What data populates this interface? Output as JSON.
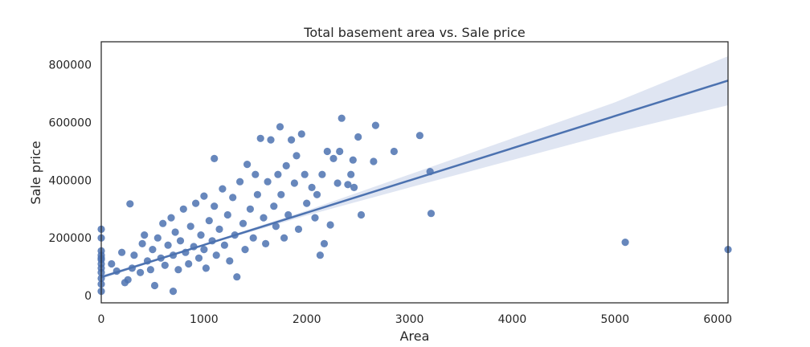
{
  "chart_data": {
    "type": "scatter",
    "title": "Total basement area vs. Sale price",
    "xlabel": "Area",
    "ylabel": "Sale price",
    "xlim": [
      0,
      6100
    ],
    "ylim": [
      -25000,
      880000
    ],
    "xticks": [
      0,
      1000,
      2000,
      3000,
      4000,
      5000,
      6000
    ],
    "yticks": [
      0,
      200000,
      400000,
      600000,
      800000
    ],
    "grid": false,
    "legend": "none",
    "colors": {
      "points": "#4c72b0",
      "regression_line": "#4c72b0",
      "confidence_band": "#c9d4e9"
    },
    "regression": {
      "intercept": 64000,
      "slope": 111.7,
      "ci_band": [
        {
          "x": 0,
          "lo": 58000,
          "hi": 70000
        },
        {
          "x": 1000,
          "lo": 173000,
          "hi": 179000
        },
        {
          "x": 2000,
          "lo": 278000,
          "hi": 295000
        },
        {
          "x": 3000,
          "lo": 375000,
          "hi": 420000
        },
        {
          "x": 4000,
          "lo": 470000,
          "hi": 545000
        },
        {
          "x": 5000,
          "lo": 565000,
          "hi": 670000
        },
        {
          "x": 6100,
          "lo": 660000,
          "hi": 830000
        }
      ]
    },
    "points": [
      {
        "x": 0,
        "y": 230000
      },
      {
        "x": 0,
        "y": 200000
      },
      {
        "x": 0,
        "y": 155000
      },
      {
        "x": 0,
        "y": 140000
      },
      {
        "x": 0,
        "y": 125000
      },
      {
        "x": 0,
        "y": 110000
      },
      {
        "x": 0,
        "y": 95000
      },
      {
        "x": 0,
        "y": 80000
      },
      {
        "x": 0,
        "y": 60000
      },
      {
        "x": 0,
        "y": 40000
      },
      {
        "x": 0,
        "y": 15000
      },
      {
        "x": 0,
        "y": 130000
      },
      {
        "x": 280,
        "y": 318000
      },
      {
        "x": 100,
        "y": 110000
      },
      {
        "x": 150,
        "y": 85000
      },
      {
        "x": 200,
        "y": 150000
      },
      {
        "x": 230,
        "y": 45000
      },
      {
        "x": 260,
        "y": 55000
      },
      {
        "x": 300,
        "y": 95000
      },
      {
        "x": 320,
        "y": 140000
      },
      {
        "x": 380,
        "y": 80000
      },
      {
        "x": 400,
        "y": 180000
      },
      {
        "x": 420,
        "y": 210000
      },
      {
        "x": 450,
        "y": 120000
      },
      {
        "x": 480,
        "y": 90000
      },
      {
        "x": 500,
        "y": 160000
      },
      {
        "x": 520,
        "y": 35000
      },
      {
        "x": 550,
        "y": 200000
      },
      {
        "x": 580,
        "y": 130000
      },
      {
        "x": 600,
        "y": 250000
      },
      {
        "x": 620,
        "y": 105000
      },
      {
        "x": 650,
        "y": 175000
      },
      {
        "x": 680,
        "y": 270000
      },
      {
        "x": 700,
        "y": 140000
      },
      {
        "x": 700,
        "y": 15000
      },
      {
        "x": 720,
        "y": 220000
      },
      {
        "x": 750,
        "y": 90000
      },
      {
        "x": 770,
        "y": 190000
      },
      {
        "x": 800,
        "y": 300000
      },
      {
        "x": 820,
        "y": 150000
      },
      {
        "x": 850,
        "y": 110000
      },
      {
        "x": 870,
        "y": 240000
      },
      {
        "x": 900,
        "y": 170000
      },
      {
        "x": 920,
        "y": 320000
      },
      {
        "x": 950,
        "y": 130000
      },
      {
        "x": 970,
        "y": 210000
      },
      {
        "x": 1000,
        "y": 345000
      },
      {
        "x": 1000,
        "y": 160000
      },
      {
        "x": 1020,
        "y": 95000
      },
      {
        "x": 1050,
        "y": 260000
      },
      {
        "x": 1080,
        "y": 190000
      },
      {
        "x": 1100,
        "y": 310000
      },
      {
        "x": 1120,
        "y": 140000
      },
      {
        "x": 1150,
        "y": 230000
      },
      {
        "x": 1180,
        "y": 370000
      },
      {
        "x": 1100,
        "y": 475000
      },
      {
        "x": 1200,
        "y": 175000
      },
      {
        "x": 1230,
        "y": 280000
      },
      {
        "x": 1250,
        "y": 120000
      },
      {
        "x": 1280,
        "y": 340000
      },
      {
        "x": 1300,
        "y": 210000
      },
      {
        "x": 1320,
        "y": 65000
      },
      {
        "x": 1350,
        "y": 395000
      },
      {
        "x": 1380,
        "y": 250000
      },
      {
        "x": 1400,
        "y": 160000
      },
      {
        "x": 1420,
        "y": 455000
      },
      {
        "x": 1450,
        "y": 300000
      },
      {
        "x": 1480,
        "y": 200000
      },
      {
        "x": 1500,
        "y": 420000
      },
      {
        "x": 1520,
        "y": 350000
      },
      {
        "x": 1550,
        "y": 545000
      },
      {
        "x": 1580,
        "y": 270000
      },
      {
        "x": 1600,
        "y": 180000
      },
      {
        "x": 1620,
        "y": 395000
      },
      {
        "x": 1650,
        "y": 540000
      },
      {
        "x": 1680,
        "y": 310000
      },
      {
        "x": 1700,
        "y": 240000
      },
      {
        "x": 1720,
        "y": 420000
      },
      {
        "x": 1740,
        "y": 585000
      },
      {
        "x": 1750,
        "y": 350000
      },
      {
        "x": 1780,
        "y": 200000
      },
      {
        "x": 1800,
        "y": 450000
      },
      {
        "x": 1820,
        "y": 280000
      },
      {
        "x": 1850,
        "y": 540000
      },
      {
        "x": 1880,
        "y": 390000
      },
      {
        "x": 1900,
        "y": 485000
      },
      {
        "x": 1920,
        "y": 230000
      },
      {
        "x": 1950,
        "y": 560000
      },
      {
        "x": 1980,
        "y": 420000
      },
      {
        "x": 2000,
        "y": 320000
      },
      {
        "x": 2050,
        "y": 375000
      },
      {
        "x": 2080,
        "y": 270000
      },
      {
        "x": 2100,
        "y": 350000
      },
      {
        "x": 2130,
        "y": 140000
      },
      {
        "x": 2150,
        "y": 420000
      },
      {
        "x": 2170,
        "y": 180000
      },
      {
        "x": 2200,
        "y": 500000
      },
      {
        "x": 2230,
        "y": 245000
      },
      {
        "x": 2260,
        "y": 475000
      },
      {
        "x": 2300,
        "y": 390000
      },
      {
        "x": 2320,
        "y": 500000
      },
      {
        "x": 2340,
        "y": 615000
      },
      {
        "x": 2400,
        "y": 385000
      },
      {
        "x": 2430,
        "y": 420000
      },
      {
        "x": 2450,
        "y": 470000
      },
      {
        "x": 2460,
        "y": 375000
      },
      {
        "x": 2500,
        "y": 550000
      },
      {
        "x": 2530,
        "y": 280000
      },
      {
        "x": 2650,
        "y": 465000
      },
      {
        "x": 2670,
        "y": 590000
      },
      {
        "x": 2850,
        "y": 500000
      },
      {
        "x": 3100,
        "y": 555000
      },
      {
        "x": 3200,
        "y": 430000
      },
      {
        "x": 3210,
        "y": 285000
      },
      {
        "x": 5100,
        "y": 185000
      },
      {
        "x": 6100,
        "y": 160000
      }
    ]
  }
}
